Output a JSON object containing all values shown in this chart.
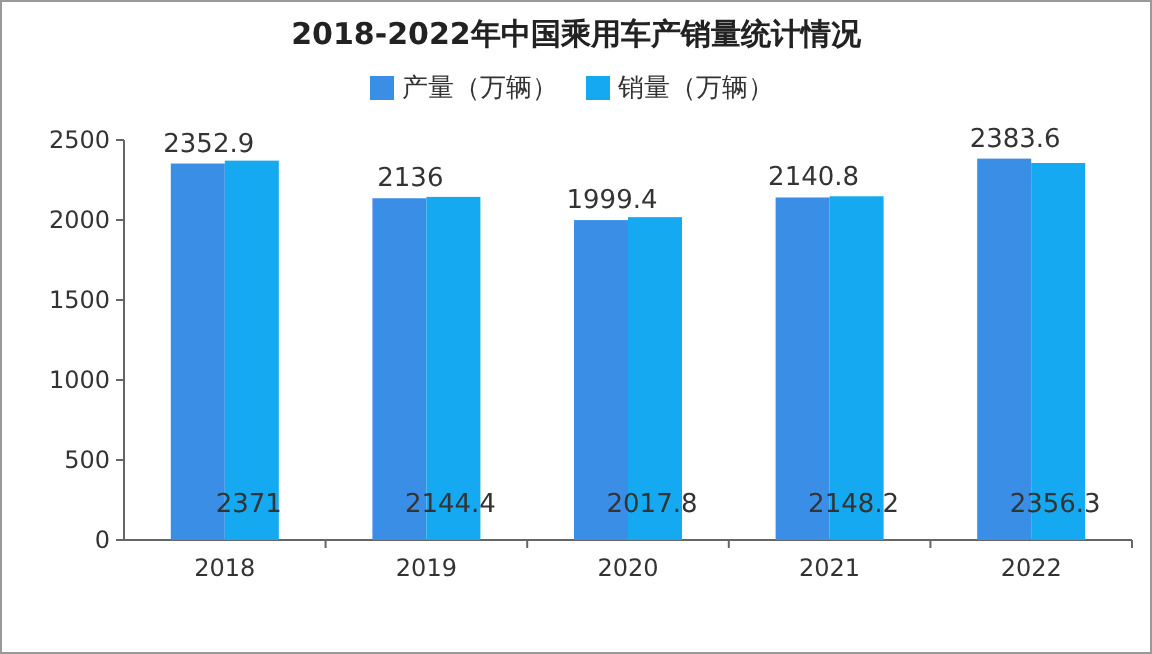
{
  "chart_data": {
    "type": "bar",
    "title": "2018-2022年中国乘用车产销量统计情况",
    "categories": [
      "2018",
      "2019",
      "2020",
      "2021",
      "2022"
    ],
    "series": [
      {
        "name": "产量（万辆）",
        "color": "#3a8ee6",
        "values": [
          2352.9,
          2136,
          1999.4,
          2140.8,
          2383.6
        ]
      },
      {
        "name": "销量（万辆）",
        "color": "#14a9f0",
        "values": [
          2371,
          2144.4,
          2017.8,
          2148.2,
          2356.3
        ]
      }
    ],
    "ylim": [
      0,
      2500
    ],
    "yticks": [
      0,
      500,
      1000,
      1500,
      2000,
      2500
    ],
    "legend": "top",
    "data_labels": true
  }
}
